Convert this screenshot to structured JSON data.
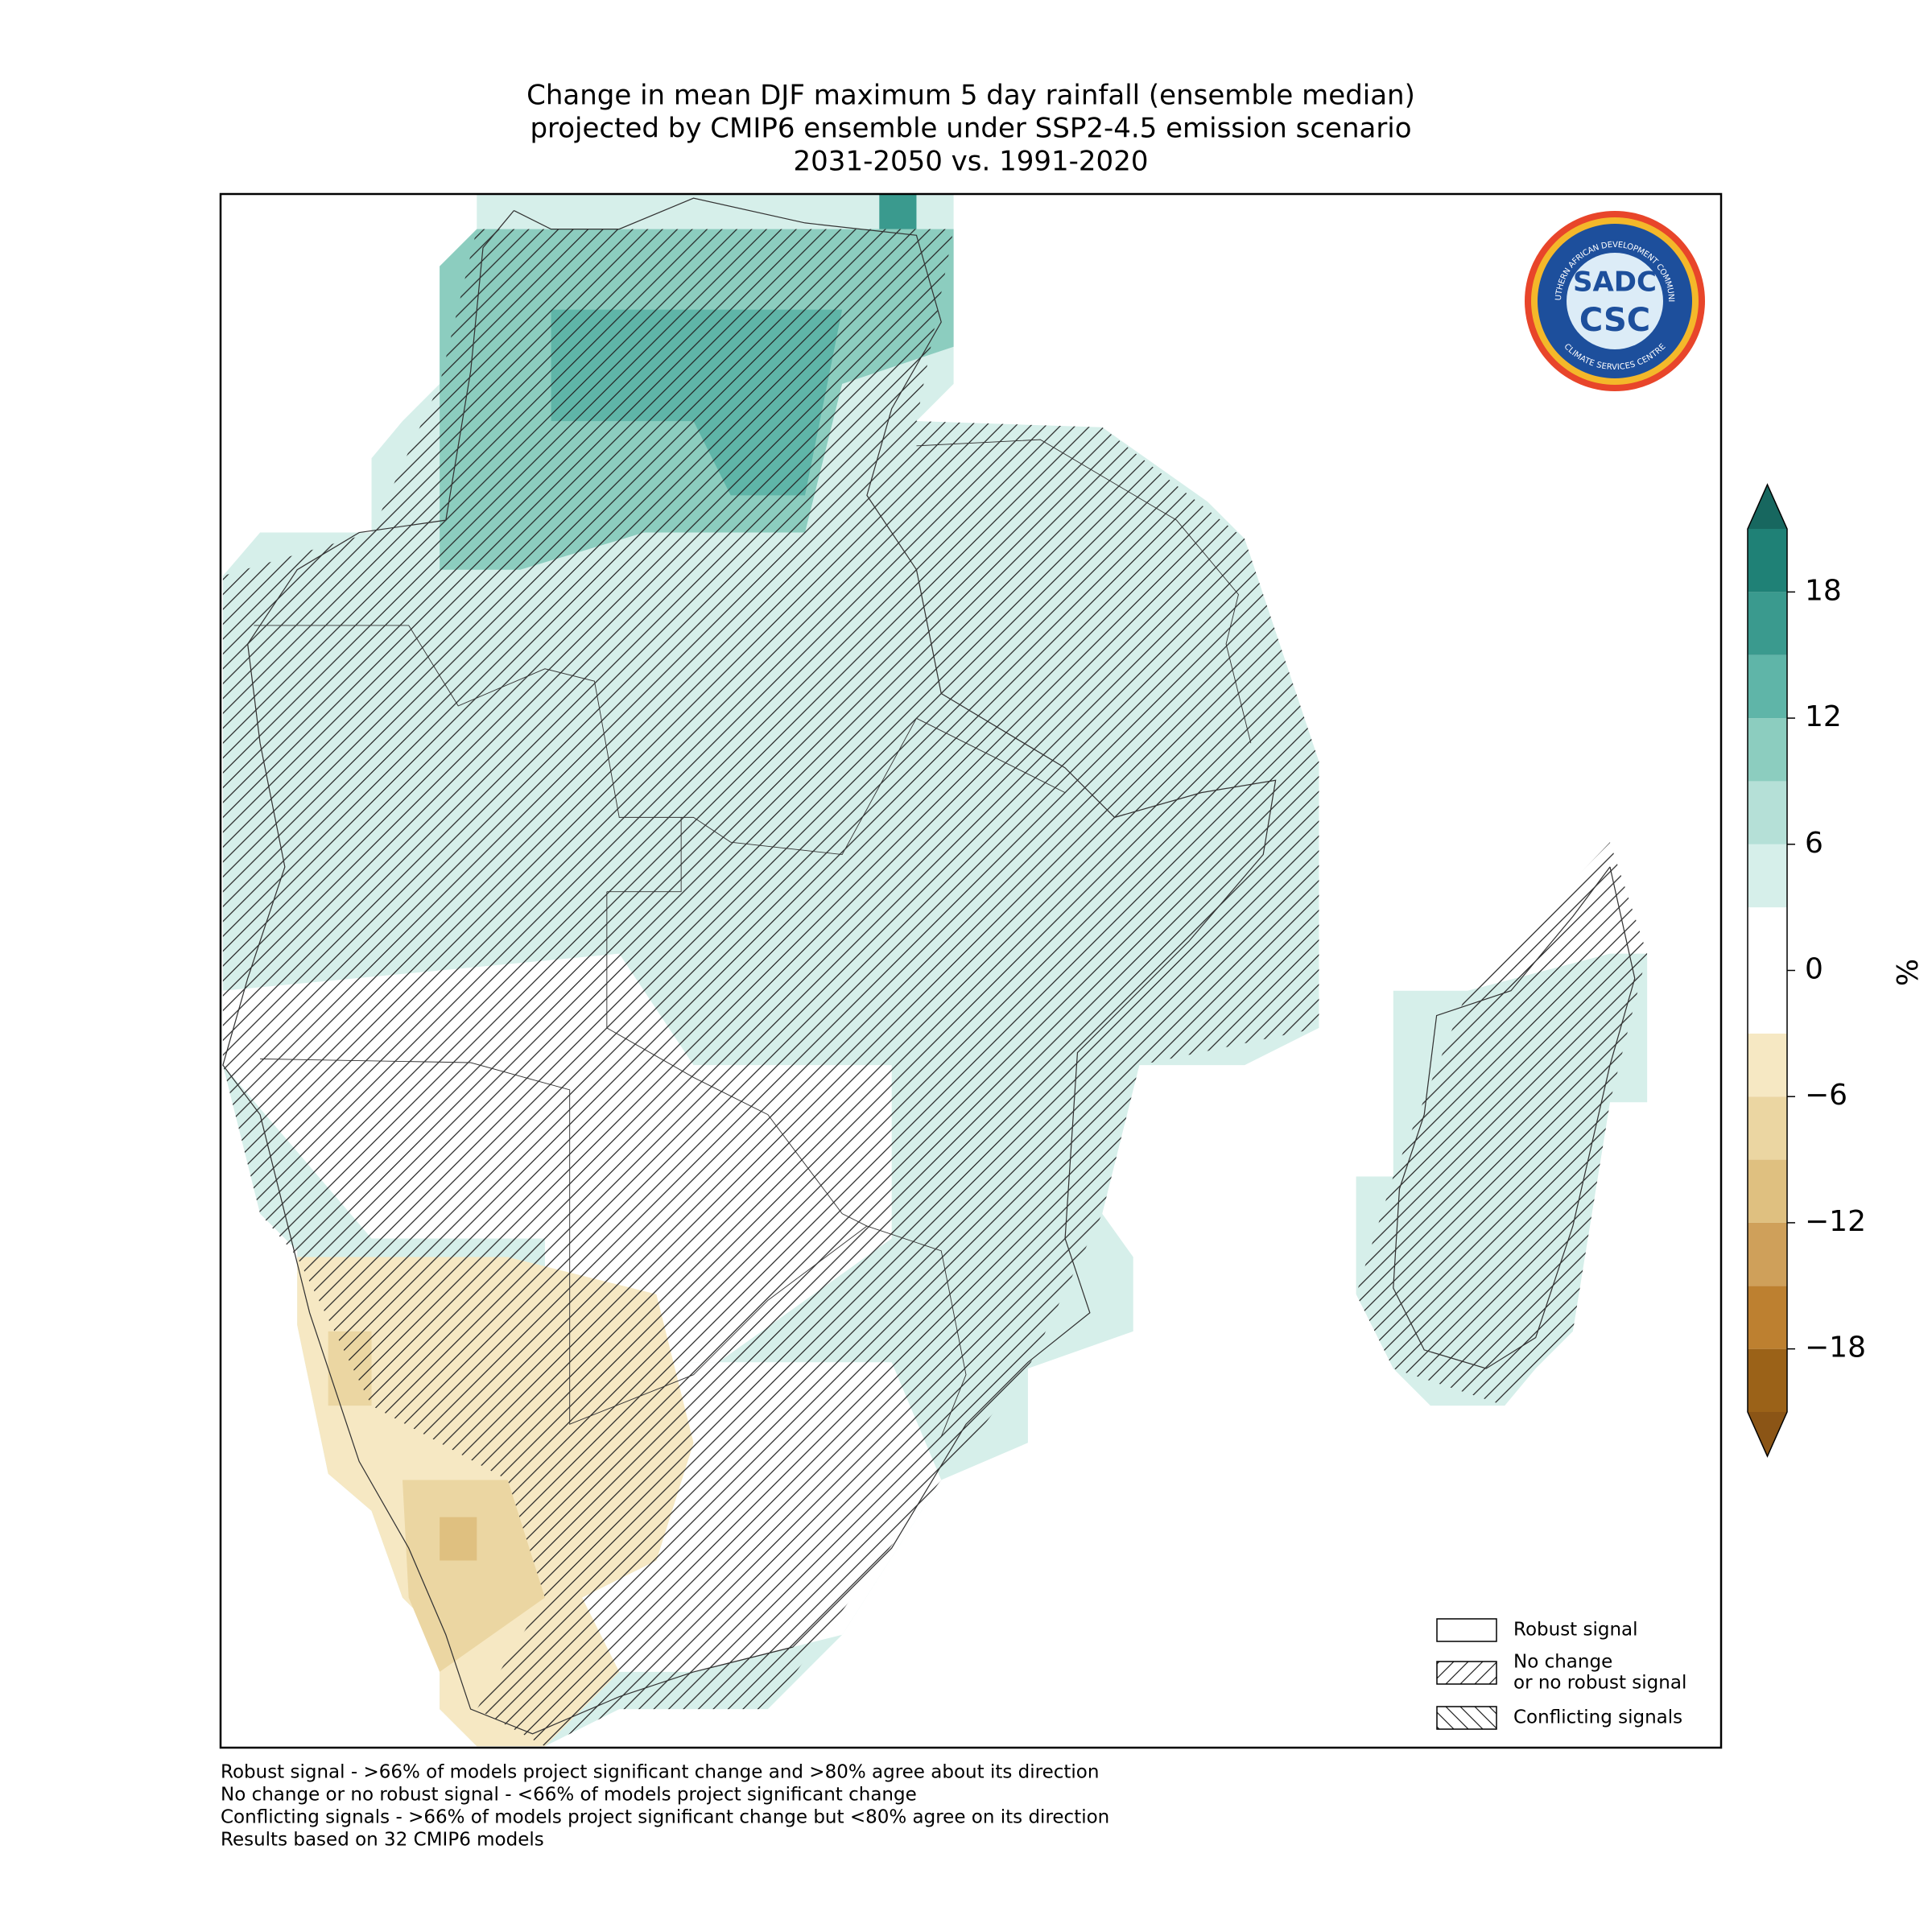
{
  "title": [
    "Change in mean DJF maximum 5 day rainfall (ensemble median)",
    "projected by CMIP6 ensemble under SSP2-4.5 emission scenario",
    "2031-2050 vs. 1991-2020"
  ],
  "colorbar": {
    "label": "%",
    "ylim": [
      -21,
      21
    ],
    "yticks": [
      {
        "value": -18,
        "label": "−18"
      },
      {
        "value": -12,
        "label": "−12"
      },
      {
        "value": -6,
        "label": "−6"
      },
      0,
      6,
      12,
      18
    ],
    "colors": [
      "#9b6218",
      "#bd8030",
      "#cfa05a",
      "#dfc080",
      "#ebd6a2",
      "#f6e8c3",
      "#ffffff",
      "#ffffff",
      "#d6efea",
      "#b5e0d7",
      "#8ccdbf",
      "#5fb5a8",
      "#3a9a8e",
      "#1f8176"
    ],
    "extend_colors": [
      "#8b5516",
      "#17675f"
    ]
  },
  "legend": [
    {
      "label": [
        "Robust signal"
      ],
      "pattern": "none"
    },
    {
      "label": [
        "No change",
        "or no robust signal"
      ],
      "pattern": "forward"
    },
    {
      "label": [
        "Conflicting signals"
      ],
      "pattern": "back"
    }
  ],
  "footnotes": [
    "Robust signal - >66% of models project significant change and >80% agree about its direction",
    "No change or no robust signal - <66% of models project significant change",
    "Conflicting signals - >66% of models project significant change but <80% agree on its direction",
    "Results based on 32 CMIP6 models"
  ],
  "logo": {
    "ring_top": "SOUTHERN AFRICAN DEVELOPMENT COMMUNITY",
    "ring_bottom": "CLIMATE SERVICES CENTRE",
    "line1": "SADC",
    "line2": "CSC"
  }
}
